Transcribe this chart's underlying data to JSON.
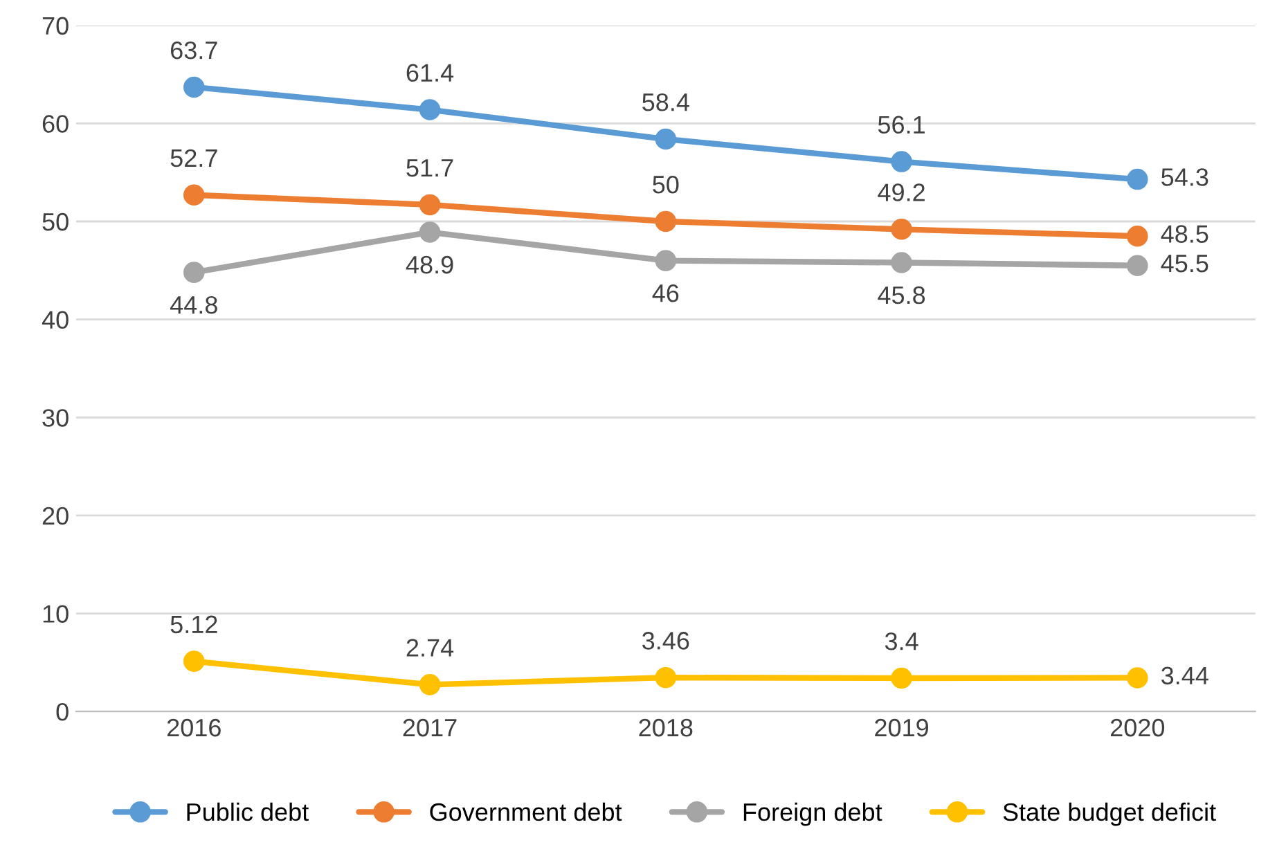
{
  "chart_data": {
    "type": "line",
    "categories": [
      "2016",
      "2017",
      "2018",
      "2019",
      "2020"
    ],
    "series": [
      {
        "name": "Public debt",
        "color": "#5b9bd5",
        "values": [
          63.7,
          61.4,
          58.4,
          56.1,
          54.3
        ]
      },
      {
        "name": "Government debt",
        "color": "#ed7d31",
        "values": [
          52.7,
          51.7,
          50,
          49.2,
          48.5
        ]
      },
      {
        "name": "Foreign debt",
        "color": "#a5a5a5",
        "values": [
          44.8,
          48.9,
          46,
          45.8,
          45.5
        ]
      },
      {
        "name": "State budget deficit",
        "color": "#ffc000",
        "values": [
          5.12,
          2.74,
          3.46,
          3.4,
          3.44
        ]
      }
    ],
    "ylim": [
      0,
      70
    ],
    "yticks": [
      0,
      10,
      20,
      30,
      40,
      50,
      60,
      70
    ],
    "grid": "y",
    "legend": "bottom",
    "marker": "circle",
    "line_style": "solid",
    "data_labels": true
  }
}
